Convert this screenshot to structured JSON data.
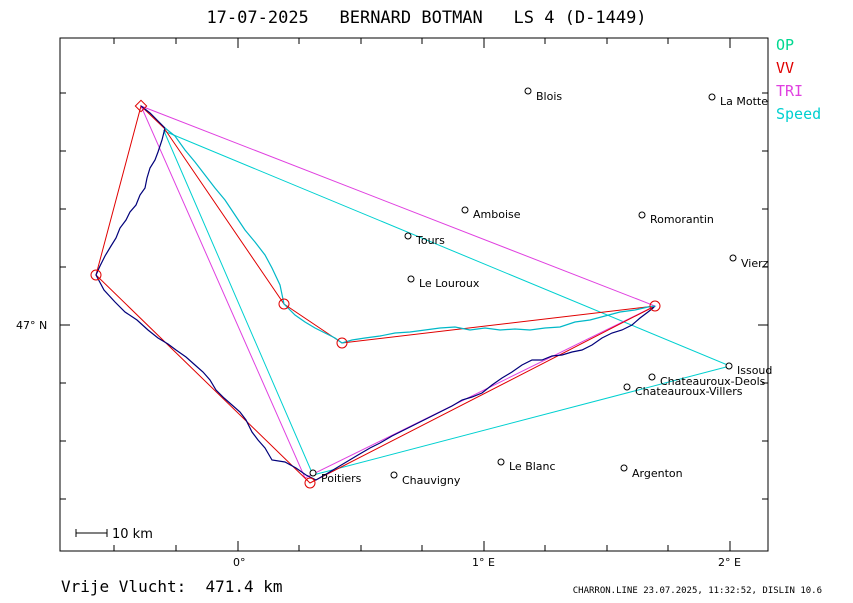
{
  "header": {
    "title": "17-07-2025   BERNARD BOTMAN   LS 4 (D-1449)"
  },
  "legend": [
    {
      "label": "OP",
      "color": "#00d890"
    },
    {
      "label": "VV",
      "color": "#e00000"
    },
    {
      "label": "TRI",
      "color": "#e040e0"
    },
    {
      "label": "Speed",
      "color": "#00d0d0"
    }
  ],
  "axes": {
    "lat_label": "47° N",
    "lon_labels": [
      "0°",
      "1° E",
      "2° E"
    ]
  },
  "scale": {
    "label": "10 km"
  },
  "cities": [
    {
      "name": "Blois"
    },
    {
      "name": "La Motte"
    },
    {
      "name": "Amboise"
    },
    {
      "name": "Romorantin"
    },
    {
      "name": "Tours"
    },
    {
      "name": "Vierz"
    },
    {
      "name": "Le Louroux"
    },
    {
      "name": "Issoud"
    },
    {
      "name": "Chateauroux-Deols"
    },
    {
      "name": "Chateauroux-Villers"
    },
    {
      "name": "Le Blanc"
    },
    {
      "name": "Argenton"
    },
    {
      "name": "Poitiers"
    },
    {
      "name": "Chauvigny"
    }
  ],
  "footer": {
    "distance": "Vrije Vlucht:  471.4 km",
    "credit": "CHARRON.LINE 23.07.2025, 11:32:52, DISLIN 10.6"
  },
  "colors": {
    "track": "#00007a",
    "track_cyan": "#00b8c8",
    "op": "#00d890",
    "vv": "#e00000",
    "tri": "#e040e0",
    "speed": "#00d0d0"
  }
}
